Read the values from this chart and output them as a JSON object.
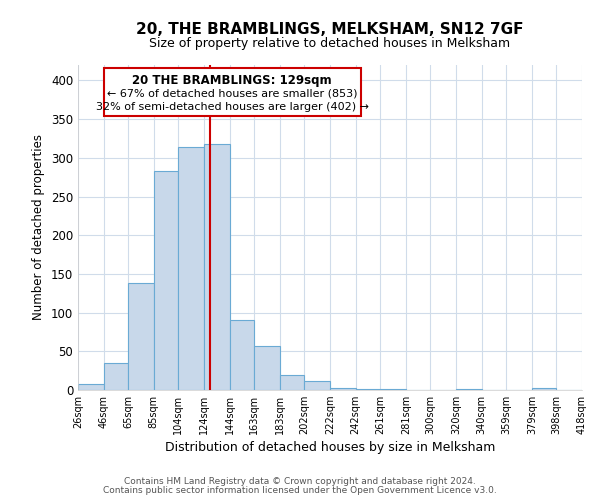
{
  "title": "20, THE BRAMBLINGS, MELKSHAM, SN12 7GF",
  "subtitle": "Size of property relative to detached houses in Melksham",
  "xlabel": "Distribution of detached houses by size in Melksham",
  "ylabel": "Number of detached properties",
  "bar_edges": [
    26,
    46,
    65,
    85,
    104,
    124,
    144,
    163,
    183,
    202,
    222,
    242,
    261,
    281,
    300,
    320,
    340,
    359,
    379,
    398,
    418
  ],
  "bar_heights": [
    8,
    35,
    138,
    283,
    314,
    318,
    91,
    57,
    19,
    11,
    2,
    1,
    1,
    0,
    0,
    1,
    0,
    0,
    2,
    0
  ],
  "bar_color": "#c8d8ea",
  "bar_edge_color": "#6aaad4",
  "vline_x": 129,
  "vline_color": "#cc0000",
  "ylim": [
    0,
    420
  ],
  "annotation_title": "20 THE BRAMBLINGS: 129sqm",
  "annotation_line1": "← 67% of detached houses are smaller (853)",
  "annotation_line2": "32% of semi-detached houses are larger (402) →",
  "annotation_box_color": "#ffffff",
  "annotation_box_edge": "#cc0000",
  "tick_labels": [
    "26sqm",
    "46sqm",
    "65sqm",
    "85sqm",
    "104sqm",
    "124sqm",
    "144sqm",
    "163sqm",
    "183sqm",
    "202sqm",
    "222sqm",
    "242sqm",
    "261sqm",
    "281sqm",
    "300sqm",
    "320sqm",
    "340sqm",
    "359sqm",
    "379sqm",
    "398sqm",
    "418sqm"
  ],
  "footnote1": "Contains HM Land Registry data © Crown copyright and database right 2024.",
  "footnote2": "Contains public sector information licensed under the Open Government Licence v3.0.",
  "bg_color": "#ffffff",
  "grid_color": "#d0dcea"
}
